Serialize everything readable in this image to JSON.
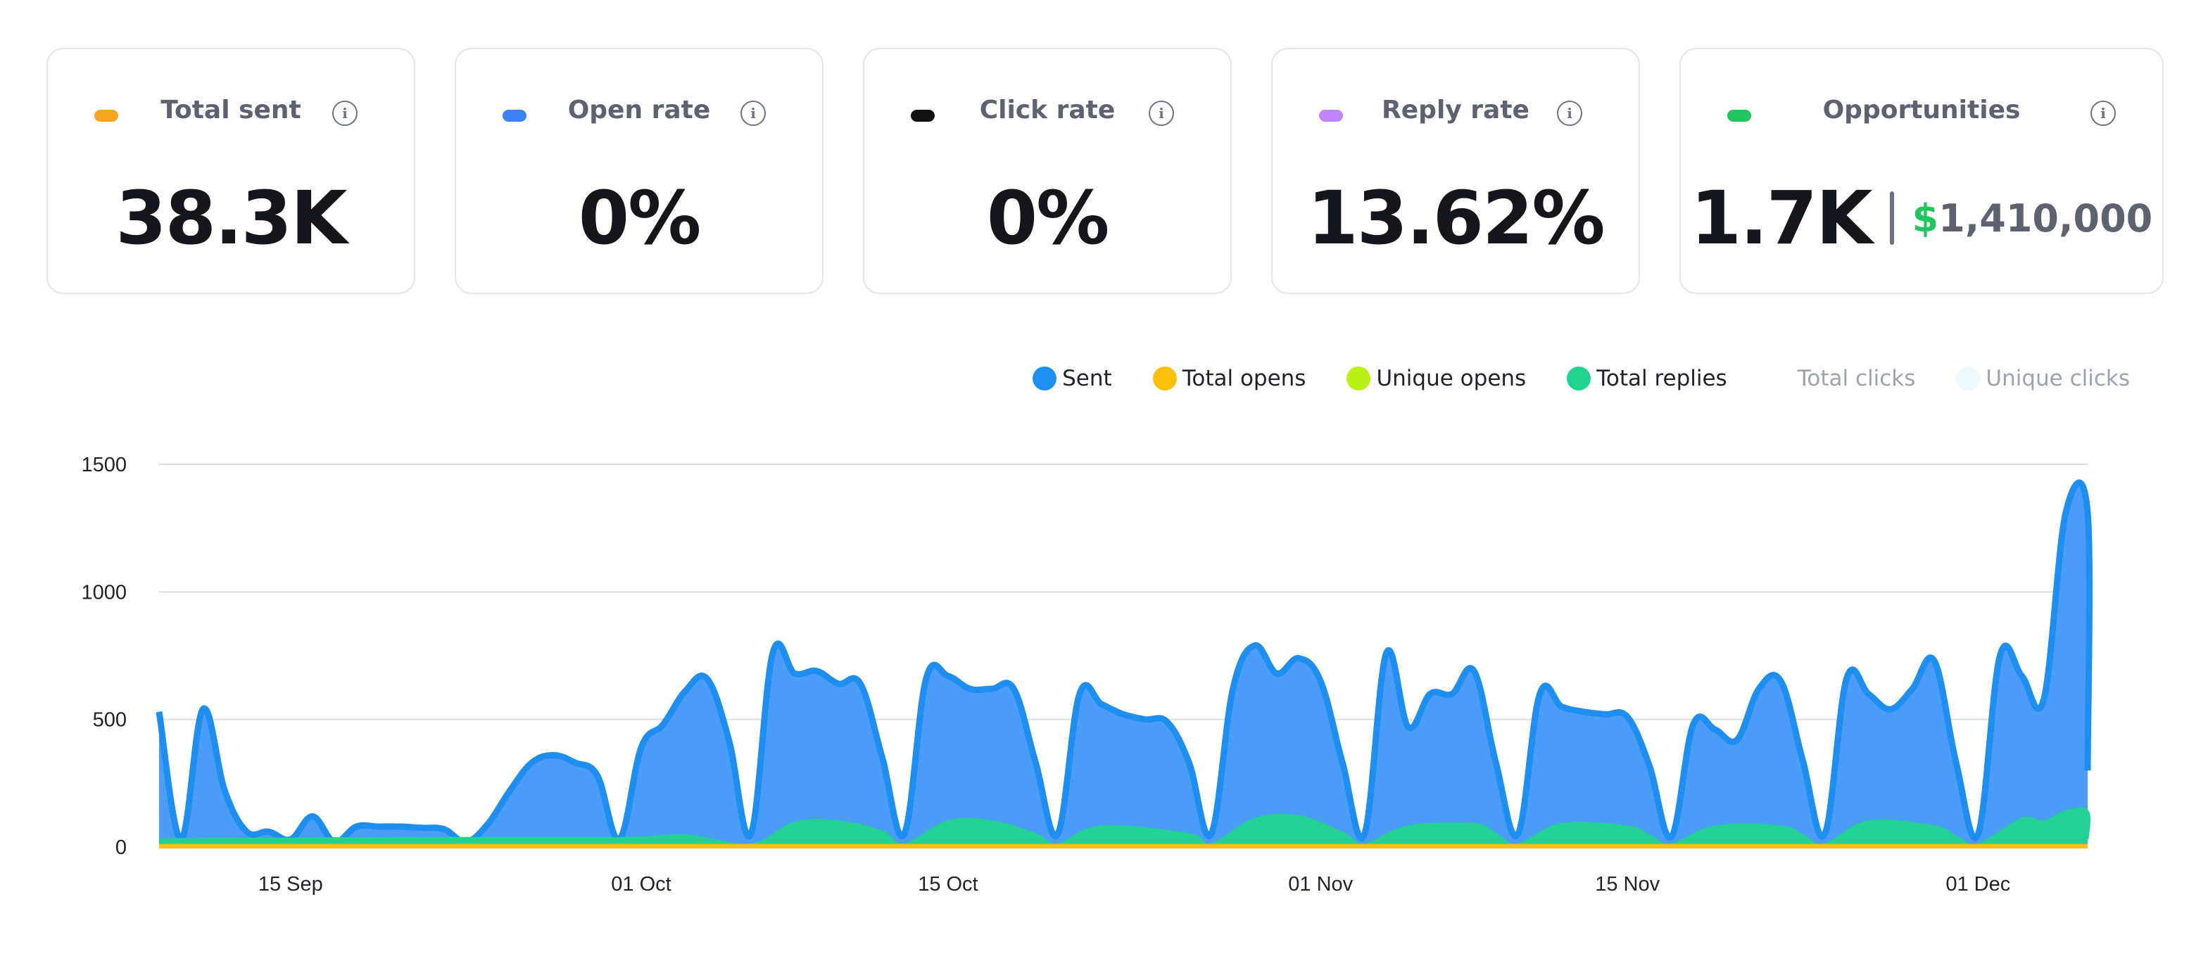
{
  "cards": [
    {
      "label": "Total sent",
      "value": "38.3K",
      "dot_color": "#f5a524"
    },
    {
      "label": "Open rate",
      "value": "0%",
      "dot_color": "#3b82f6"
    },
    {
      "label": "Click rate",
      "value": "0%",
      "dot_color": "#111111"
    },
    {
      "label": "Reply rate",
      "value": "13.62%",
      "dot_color": "#c084fc"
    },
    {
      "label": "Opportunities",
      "value": "1.7K",
      "money_symbol": "$",
      "money_value": "1,410,000",
      "dot_color": "#22c55e"
    }
  ],
  "info_icon": "info-icon",
  "chart_data": {
    "type": "area",
    "legend": [
      {
        "name": "Sent",
        "color": "#1e8ff0"
      },
      {
        "name": "Total opens",
        "color": "#fbbf0e"
      },
      {
        "name": "Unique opens",
        "color": "#b9f016"
      },
      {
        "name": "Total replies",
        "color": "#22d38f"
      },
      {
        "name": "Total clicks",
        "color": "#ffffff",
        "muted": true
      },
      {
        "name": "Unique clicks",
        "color": "#eef9fd",
        "muted": true
      }
    ],
    "x_start": "2024-09-09",
    "x_end": "2024-12-06",
    "x_ticks": [
      {
        "label": "15 Sep",
        "date": "2024-09-15"
      },
      {
        "label": "01 Oct",
        "date": "2024-10-01"
      },
      {
        "label": "15 Oct",
        "date": "2024-10-15"
      },
      {
        "label": "01 Nov",
        "date": "2024-11-01"
      },
      {
        "label": "15 Nov",
        "date": "2024-11-15"
      },
      {
        "label": "01 Dec",
        "date": "2024-12-01"
      }
    ],
    "y_ticks": [
      0,
      500,
      1000,
      1500
    ],
    "ylim": [
      0,
      1500
    ],
    "grid": true,
    "series": [
      {
        "name": "Sent",
        "color": "#1e8ff0",
        "points": [
          [
            "2024-09-09",
            530
          ],
          [
            "2024-09-10",
            30
          ],
          [
            "2024-09-11",
            540
          ],
          [
            "2024-09-12",
            220
          ],
          [
            "2024-09-13",
            60
          ],
          [
            "2024-09-14",
            60
          ],
          [
            "2024-09-15",
            30
          ],
          [
            "2024-09-16",
            120
          ],
          [
            "2024-09-17",
            20
          ],
          [
            "2024-09-18",
            80
          ],
          [
            "2024-09-19",
            80
          ],
          [
            "2024-09-20",
            80
          ],
          [
            "2024-09-21",
            75
          ],
          [
            "2024-09-22",
            70
          ],
          [
            "2024-09-23",
            20
          ],
          [
            "2024-09-24",
            90
          ],
          [
            "2024-09-25",
            220
          ],
          [
            "2024-09-26",
            330
          ],
          [
            "2024-09-27",
            360
          ],
          [
            "2024-09-28",
            330
          ],
          [
            "2024-09-29",
            280
          ],
          [
            "2024-09-30",
            30
          ],
          [
            "2024-10-01",
            390
          ],
          [
            "2024-10-02",
            480
          ],
          [
            "2024-10-03",
            610
          ],
          [
            "2024-10-04",
            660
          ],
          [
            "2024-10-05",
            420
          ],
          [
            "2024-10-06",
            50
          ],
          [
            "2024-10-07",
            760
          ],
          [
            "2024-10-08",
            680
          ],
          [
            "2024-10-09",
            690
          ],
          [
            "2024-10-10",
            640
          ],
          [
            "2024-10-11",
            640
          ],
          [
            "2024-10-12",
            350
          ],
          [
            "2024-10-13",
            50
          ],
          [
            "2024-10-14",
            660
          ],
          [
            "2024-10-15",
            670
          ],
          [
            "2024-10-16",
            620
          ],
          [
            "2024-10-17",
            620
          ],
          [
            "2024-10-18",
            620
          ],
          [
            "2024-10-19",
            330
          ],
          [
            "2024-10-20",
            50
          ],
          [
            "2024-10-21",
            600
          ],
          [
            "2024-10-22",
            560
          ],
          [
            "2024-10-23",
            520
          ],
          [
            "2024-10-24",
            500
          ],
          [
            "2024-10-25",
            490
          ],
          [
            "2024-10-26",
            330
          ],
          [
            "2024-10-27",
            50
          ],
          [
            "2024-10-28",
            620
          ],
          [
            "2024-10-29",
            790
          ],
          [
            "2024-10-30",
            680
          ],
          [
            "2024-10-31",
            740
          ],
          [
            "2024-11-01",
            650
          ],
          [
            "2024-11-02",
            330
          ],
          [
            "2024-11-03",
            50
          ],
          [
            "2024-11-04",
            760
          ],
          [
            "2024-11-05",
            470
          ],
          [
            "2024-11-06",
            600
          ],
          [
            "2024-11-07",
            600
          ],
          [
            "2024-11-08",
            690
          ],
          [
            "2024-11-09",
            330
          ],
          [
            "2024-11-10",
            50
          ],
          [
            "2024-11-11",
            600
          ],
          [
            "2024-11-12",
            550
          ],
          [
            "2024-11-13",
            530
          ],
          [
            "2024-11-14",
            520
          ],
          [
            "2024-11-15",
            510
          ],
          [
            "2024-11-16",
            320
          ],
          [
            "2024-11-17",
            40
          ],
          [
            "2024-11-18",
            480
          ],
          [
            "2024-11-19",
            460
          ],
          [
            "2024-11-20",
            420
          ],
          [
            "2024-11-21",
            620
          ],
          [
            "2024-11-22",
            650
          ],
          [
            "2024-11-23",
            340
          ],
          [
            "2024-11-24",
            50
          ],
          [
            "2024-11-25",
            660
          ],
          [
            "2024-11-26",
            600
          ],
          [
            "2024-11-27",
            540
          ],
          [
            "2024-11-28",
            620
          ],
          [
            "2024-11-29",
            730
          ],
          [
            "2024-11-30",
            330
          ],
          [
            "2024-12-01",
            50
          ],
          [
            "2024-12-02",
            750
          ],
          [
            "2024-12-03",
            670
          ],
          [
            "2024-12-04",
            580
          ],
          [
            "2024-12-05",
            1310
          ],
          [
            "2024-12-06",
            1310
          ],
          [
            "2024-12-07",
            300
          ]
        ]
      },
      {
        "name": "Total replies",
        "color": "#22d38f",
        "points": [
          [
            "2024-09-09",
            30
          ],
          [
            "2024-09-20",
            35
          ],
          [
            "2024-09-30",
            35
          ],
          [
            "2024-10-03",
            45
          ],
          [
            "2024-10-06",
            10
          ],
          [
            "2024-10-08",
            95
          ],
          [
            "2024-10-10",
            100
          ],
          [
            "2024-10-12",
            60
          ],
          [
            "2024-10-13",
            10
          ],
          [
            "2024-10-15",
            100
          ],
          [
            "2024-10-17",
            100
          ],
          [
            "2024-10-19",
            50
          ],
          [
            "2024-10-20",
            10
          ],
          [
            "2024-10-22",
            80
          ],
          [
            "2024-10-26",
            50
          ],
          [
            "2024-10-27",
            10
          ],
          [
            "2024-10-29",
            110
          ],
          [
            "2024-10-31",
            120
          ],
          [
            "2024-11-02",
            55
          ],
          [
            "2024-11-03",
            10
          ],
          [
            "2024-11-05",
            80
          ],
          [
            "2024-11-08",
            90
          ],
          [
            "2024-11-09",
            50
          ],
          [
            "2024-11-10",
            10
          ],
          [
            "2024-11-12",
            90
          ],
          [
            "2024-11-15",
            80
          ],
          [
            "2024-11-16",
            45
          ],
          [
            "2024-11-17",
            10
          ],
          [
            "2024-11-19",
            80
          ],
          [
            "2024-11-22",
            80
          ],
          [
            "2024-11-23",
            45
          ],
          [
            "2024-11-24",
            10
          ],
          [
            "2024-11-26",
            100
          ],
          [
            "2024-11-29",
            80
          ],
          [
            "2024-11-30",
            40
          ],
          [
            "2024-12-01",
            10
          ],
          [
            "2024-12-03",
            110
          ],
          [
            "2024-12-04",
            100
          ],
          [
            "2024-12-05",
            140
          ],
          [
            "2024-12-06",
            140
          ],
          [
            "2024-12-07",
            30
          ]
        ]
      },
      {
        "name": "Total opens",
        "color": "#fbbf0e",
        "points": [
          [
            "2024-09-09",
            12
          ],
          [
            "2024-12-07",
            12
          ]
        ]
      }
    ]
  }
}
